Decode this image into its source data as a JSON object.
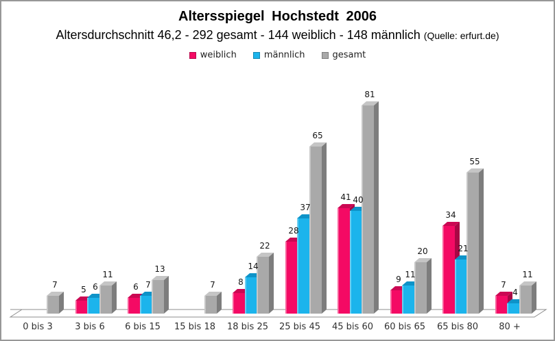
{
  "page": {
    "title": "Altersspiegel Hochstedt 2006",
    "subtitle": "Altersdurchschnitt 46,2 - 292 gesamt - 144 weiblich - 148 männlich",
    "subtitle_source": "(Quelle: erfurt.de)"
  },
  "legend": {
    "items": [
      {
        "label": "weiblich",
        "color": "#F40A64"
      },
      {
        "label": "männlich",
        "color": "#1CB4EC"
      },
      {
        "label": "gesamt",
        "color": "#A9A9A9"
      }
    ],
    "position": "top-center"
  },
  "chart_data": {
    "type": "bar",
    "style": "3d-column",
    "title": "Altersspiegel Hochstedt 2006",
    "subtitle": "Altersdurchschnitt 46,2 - 292 gesamt - 144 weiblich - 148 männlich (Quelle: erfurt.de)",
    "categories": [
      "0 bis 3",
      "3 bis 6",
      "6 bis 15",
      "15 bis 18",
      "18 bis 25",
      "25 bis 45",
      "45 bis 60",
      "60 bis 65",
      "65 bis 80",
      "80 +"
    ],
    "series": [
      {
        "name": "weiblich",
        "color": "#F40A64",
        "color_top": "#CB0853",
        "color_side": "#A80745",
        "values": [
          null,
          5,
          6,
          null,
          8,
          28,
          41,
          9,
          34,
          7
        ]
      },
      {
        "name": "männlich",
        "color": "#1CB4EC",
        "color_top": "#0E93C8",
        "color_side": "#0C7CA9",
        "values": [
          null,
          6,
          7,
          null,
          14,
          37,
          40,
          11,
          21,
          4
        ]
      },
      {
        "name": "gesamt",
        "color": "#A9A9A9",
        "color_top": "#C5C5C5",
        "color_side": "#7D7D7D",
        "values": [
          7,
          11,
          13,
          7,
          22,
          65,
          81,
          20,
          55,
          11
        ]
      }
    ],
    "value_labels": true,
    "xlabel": "",
    "ylabel": "",
    "ylim": [
      0,
      85
    ],
    "grid": false,
    "axis_color": "#8C8C8C",
    "legend_position": "top"
  }
}
